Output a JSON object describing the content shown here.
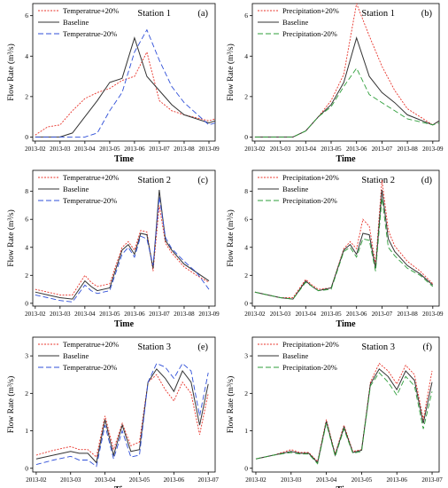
{
  "units": {
    "flow_rate_ylabel": "Flow Rate (m³/s)"
  },
  "colors": {
    "plus": "#e8332a",
    "baseline": "#333333",
    "minus_temp": "#2f4fd8",
    "minus_precip": "#2e9e3a"
  },
  "chart_data": [
    {
      "type": "line",
      "panel_label": "(a)",
      "station": "Station 1",
      "xlabel": "Time",
      "ylabel": "Flow Rate (m³/s)",
      "ylim": [
        -0.2,
        6.6
      ],
      "yticks": [
        0,
        2,
        4,
        6
      ],
      "xlim": [
        -0.2,
        14.5
      ],
      "xticks": [
        0,
        2,
        4,
        6,
        8,
        10,
        12,
        14
      ],
      "xtick_labels": [
        "2013-02",
        "2013-03",
        "2013-04",
        "2013-05",
        "2013-06",
        "2013-07",
        "2013-08",
        "2013-09"
      ],
      "x": [
        0,
        1,
        2,
        3,
        4,
        5,
        6,
        7,
        8,
        9,
        10,
        11,
        12,
        14,
        14.5
      ],
      "series": [
        {
          "name": "Temperatrue+20%",
          "style": "dotted",
          "color": "#e8332a",
          "values": [
            0.1,
            0.5,
            0.6,
            1.3,
            1.9,
            2.2,
            2.4,
            2.8,
            3.0,
            4.2,
            1.8,
            1.3,
            1.1,
            0.8,
            0.9
          ]
        },
        {
          "name": "Baseline",
          "style": "solid",
          "color": "#333333",
          "values": [
            0.0,
            0.0,
            0.0,
            0.2,
            1.0,
            1.8,
            2.7,
            2.9,
            4.9,
            3.0,
            2.3,
            1.6,
            1.1,
            0.7,
            0.8
          ]
        },
        {
          "name": "Temperatrue-20%",
          "style": "dashed",
          "color": "#2f4fd8",
          "values": [
            0.0,
            0.0,
            0.0,
            0.0,
            0.0,
            0.2,
            1.3,
            2.2,
            4.2,
            5.3,
            3.8,
            2.5,
            1.7,
            0.6,
            0.7
          ]
        }
      ]
    },
    {
      "type": "line",
      "panel_label": "(b)",
      "station": "Station 1",
      "xlabel": "Time",
      "ylabel": "Flow Rate (m³/s)",
      "ylim": [
        -0.2,
        6.6
      ],
      "yticks": [
        0,
        2,
        4,
        6
      ],
      "xlim": [
        -0.2,
        14.5
      ],
      "xticks": [
        0,
        2,
        4,
        6,
        8,
        10,
        12,
        14
      ],
      "xtick_labels": [
        "2013-02",
        "2013-03",
        "2013-04",
        "2013-05",
        "2013-06",
        "2013-07",
        "2013-08",
        "2013-09"
      ],
      "x": [
        0,
        1,
        2,
        3,
        4,
        5,
        6,
        7,
        8,
        9,
        10,
        11,
        12,
        14,
        14.5
      ],
      "series": [
        {
          "name": "Precipitation+20%",
          "style": "dotted",
          "color": "#e8332a",
          "values": [
            0.0,
            0.0,
            0.0,
            0.0,
            0.3,
            1.0,
            1.8,
            3.1,
            6.6,
            5.0,
            3.5,
            2.3,
            1.4,
            0.6,
            0.8
          ]
        },
        {
          "name": "Baseline",
          "style": "solid",
          "color": "#333333",
          "values": [
            0.0,
            0.0,
            0.0,
            0.0,
            0.3,
            1.0,
            1.6,
            2.7,
            4.9,
            3.0,
            2.2,
            1.7,
            1.1,
            0.6,
            0.8
          ]
        },
        {
          "name": "Precipitation-20%",
          "style": "dashed",
          "color": "#2e9e3a",
          "values": [
            0.0,
            0.0,
            0.0,
            0.0,
            0.3,
            1.0,
            1.5,
            2.5,
            3.4,
            2.1,
            1.7,
            1.3,
            0.9,
            0.6,
            0.7
          ]
        }
      ]
    },
    {
      "type": "line",
      "panel_label": "(c)",
      "station": "Station 2",
      "xlabel": "Time",
      "ylabel": "Flow Rate (m³/s)",
      "ylim": [
        -0.2,
        9.5
      ],
      "yticks": [
        0,
        2,
        4,
        6,
        8
      ],
      "xlim": [
        -0.2,
        14.5
      ],
      "xticks": [
        0,
        2,
        4,
        6,
        8,
        10,
        12,
        14
      ],
      "xtick_labels": [
        "2013-02",
        "2013-03",
        "2013-04",
        "2013-05",
        "2013-06",
        "2013-07",
        "2013-08",
        "2013-09"
      ],
      "x": [
        0,
        1,
        2,
        3,
        4,
        4.5,
        5,
        6,
        7,
        7.5,
        8,
        8.5,
        9,
        9.5,
        10,
        10.5,
        11,
        12,
        13,
        14
      ],
      "series": [
        {
          "name": "Temperatrue+20%",
          "style": "dotted",
          "color": "#e8332a",
          "values": [
            1.0,
            0.8,
            0.6,
            0.6,
            2.0,
            1.5,
            1.2,
            1.4,
            4.0,
            4.4,
            3.8,
            5.2,
            5.1,
            2.3,
            7.0,
            4.3,
            3.6,
            2.6,
            2.0,
            1.5
          ]
        },
        {
          "name": "Baseline",
          "style": "solid",
          "color": "#333333",
          "values": [
            0.8,
            0.6,
            0.4,
            0.3,
            1.6,
            1.2,
            0.9,
            1.1,
            3.8,
            4.2,
            3.5,
            5.0,
            4.9,
            2.5,
            8.1,
            4.5,
            3.8,
            2.8,
            2.2,
            1.6
          ]
        },
        {
          "name": "Temperatrue-20%",
          "style": "dashed",
          "color": "#2f4fd8",
          "values": [
            0.6,
            0.4,
            0.2,
            0.1,
            1.3,
            0.9,
            0.7,
            0.9,
            3.5,
            4.0,
            3.3,
            4.8,
            4.6,
            2.7,
            7.6,
            4.7,
            3.9,
            3.0,
            2.2,
            1.0
          ]
        }
      ]
    },
    {
      "type": "line",
      "panel_label": "(d)",
      "station": "Station 2",
      "xlabel": "Time",
      "ylabel": "Flow Rate (m³/s)",
      "ylim": [
        -0.2,
        9.5
      ],
      "yticks": [
        0,
        2,
        4,
        6,
        8
      ],
      "xlim": [
        -0.2,
        14.5
      ],
      "xticks": [
        0,
        2,
        4,
        6,
        8,
        10,
        12,
        14
      ],
      "xtick_labels": [
        "2013-02",
        "2013-03",
        "2013-04",
        "2013-05",
        "2013-06",
        "2013-07",
        "2013-08",
        "2013-09"
      ],
      "x": [
        0,
        1,
        2,
        3,
        4,
        4.5,
        5,
        6,
        7,
        7.5,
        8,
        8.5,
        9,
        9.5,
        10,
        10.5,
        11,
        12,
        13,
        14
      ],
      "series": [
        {
          "name": "Precipitation+20%",
          "style": "dotted",
          "color": "#e8332a",
          "values": [
            0.8,
            0.6,
            0.4,
            0.4,
            1.7,
            1.3,
            1.0,
            1.1,
            3.9,
            4.4,
            3.9,
            6.0,
            5.5,
            2.8,
            8.8,
            5.2,
            4.1,
            3.0,
            2.3,
            1.4
          ]
        },
        {
          "name": "Baseline",
          "style": "solid",
          "color": "#333333",
          "values": [
            0.8,
            0.6,
            0.4,
            0.3,
            1.6,
            1.2,
            0.9,
            1.1,
            3.8,
            4.2,
            3.5,
            5.0,
            4.9,
            2.5,
            8.1,
            4.6,
            3.7,
            2.7,
            2.1,
            1.3
          ]
        },
        {
          "name": "Precipitation-20%",
          "style": "dashed",
          "color": "#2e9e3a",
          "values": [
            0.8,
            0.6,
            0.4,
            0.3,
            1.5,
            1.2,
            0.9,
            1.0,
            3.7,
            4.0,
            3.3,
            4.6,
            4.5,
            2.3,
            7.5,
            4.0,
            3.4,
            2.5,
            2.0,
            1.2
          ]
        }
      ]
    },
    {
      "type": "line",
      "panel_label": "(e)",
      "station": "Station 3",
      "xlabel": "Time",
      "ylabel": "Flow Rate (m³/s)",
      "ylim": [
        -0.1,
        3.5
      ],
      "yticks": [
        0,
        1,
        2,
        3
      ],
      "xlim": [
        -0.2,
        10.4
      ],
      "xticks": [
        0,
        2,
        4,
        6,
        8,
        10
      ],
      "xtick_labels": [
        "2013-02",
        "2013-03",
        "2013-04",
        "2013-05",
        "2013-06",
        "2013-07"
      ],
      "x": [
        0,
        1,
        2,
        2.5,
        3,
        3.5,
        4,
        4.5,
        5,
        5.5,
        6,
        6.5,
        7,
        7.5,
        8,
        8.5,
        9,
        9.5,
        10
      ],
      "series": [
        {
          "name": "Temperatrue+20%",
          "style": "dotted",
          "color": "#e8332a",
          "values": [
            0.35,
            0.48,
            0.58,
            0.5,
            0.5,
            0.3,
            1.4,
            0.5,
            1.2,
            0.6,
            0.7,
            2.3,
            2.5,
            2.1,
            1.8,
            2.3,
            2.0,
            0.9,
            2.0
          ]
        },
        {
          "name": "Baseline",
          "style": "solid",
          "color": "#333333",
          "values": [
            0.25,
            0.35,
            0.45,
            0.4,
            0.4,
            0.15,
            1.3,
            0.35,
            1.15,
            0.45,
            0.5,
            2.3,
            2.65,
            2.4,
            2.05,
            2.6,
            2.3,
            1.15,
            2.25
          ]
        },
        {
          "name": "Temperatrue-20%",
          "style": "dashed",
          "color": "#2f4fd8",
          "values": [
            0.1,
            0.22,
            0.32,
            0.22,
            0.22,
            0.05,
            1.15,
            0.25,
            1.0,
            0.3,
            0.35,
            2.3,
            2.8,
            2.7,
            2.4,
            2.8,
            2.6,
            1.4,
            2.55
          ]
        }
      ]
    },
    {
      "type": "line",
      "panel_label": "(f)",
      "station": "Station 3",
      "xlabel": "Time",
      "ylabel": "Flow Rate (m³/s)",
      "ylim": [
        -0.1,
        3.5
      ],
      "yticks": [
        0,
        1,
        2,
        3
      ],
      "xlim": [
        -0.2,
        10.4
      ],
      "xticks": [
        0,
        2,
        4,
        6,
        8,
        10
      ],
      "xtick_labels": [
        "2013-02",
        "2013-03",
        "2013-04",
        "2013-05",
        "2013-06",
        "2013-07"
      ],
      "x": [
        0,
        1,
        2,
        2.5,
        3,
        3.5,
        4,
        4.5,
        5,
        5.5,
        6,
        6.5,
        7,
        7.5,
        8,
        8.5,
        9,
        9.5,
        10
      ],
      "series": [
        {
          "name": "Precipitation+20%",
          "style": "dotted",
          "color": "#e8332a",
          "values": [
            0.25,
            0.35,
            0.5,
            0.42,
            0.42,
            0.18,
            1.3,
            0.38,
            1.15,
            0.45,
            0.5,
            2.3,
            2.8,
            2.6,
            2.25,
            2.75,
            2.5,
            1.3,
            2.6
          ]
        },
        {
          "name": "Baseline",
          "style": "solid",
          "color": "#333333",
          "values": [
            0.25,
            0.35,
            0.45,
            0.4,
            0.4,
            0.15,
            1.25,
            0.35,
            1.1,
            0.42,
            0.48,
            2.25,
            2.65,
            2.45,
            2.1,
            2.6,
            2.35,
            1.2,
            2.3
          ]
        },
        {
          "name": "Precipitation-20%",
          "style": "dashed",
          "color": "#2e9e3a",
          "values": [
            0.25,
            0.35,
            0.42,
            0.38,
            0.38,
            0.12,
            1.2,
            0.32,
            1.05,
            0.4,
            0.45,
            2.2,
            2.55,
            2.3,
            1.95,
            2.45,
            2.2,
            1.05,
            2.05
          ]
        }
      ]
    }
  ]
}
